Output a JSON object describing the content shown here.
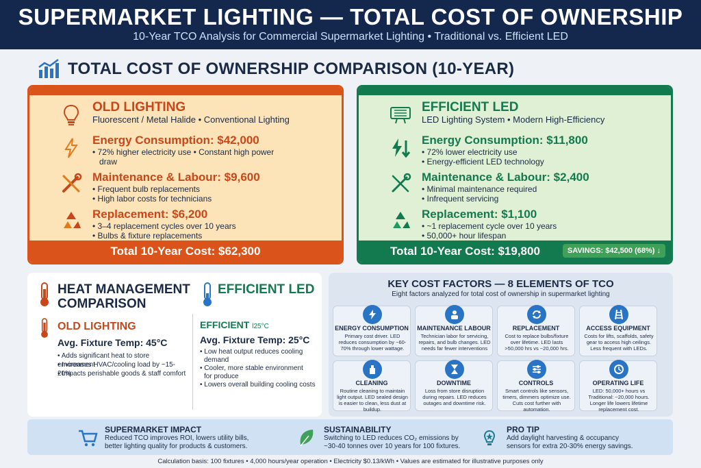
{
  "header": {
    "title": "SUPERMARKET LIGHTING — TOTAL COST OF OWNERSHIP",
    "subtitle": "10-Year TCO Analysis for Commercial Supermarket Lighting • Traditional vs. Efficient LED"
  },
  "section_title": "TOTAL COST OF OWNERSHIP COMPARISON (10-YEAR)",
  "old": {
    "title": "OLD LIGHTING",
    "subtitle": "Fluorescent / Metal Halide • Conventional Lighting",
    "energy": {
      "heading": "Energy Consumption: $42,000",
      "lines": [
        "• 72% higher electricity use • Constant high power",
        "draw"
      ]
    },
    "maintenance": {
      "heading": "Maintenance & Labour: $9,600",
      "lines": [
        "• Frequent bulb replacements",
        "• High labor costs for technicians"
      ]
    },
    "replacement": {
      "heading": "Replacement: $6,200",
      "lines": [
        "• 3–4 replacement cycles over 10 years",
        "• Bulbs & fixture replacements"
      ]
    },
    "total": "Total 10-Year Cost: $62,300"
  },
  "led": {
    "title": "EFFICIENT LED",
    "subtitle": "LED Lighting System • Modern High-Efficiency",
    "energy": {
      "heading": "Energy Consumption: $11,800",
      "lines": [
        "• 72% lower electricity use",
        "• Energy-efficient LED technology"
      ]
    },
    "maintenance": {
      "heading": "Maintenance & Labour: $2,400",
      "lines": [
        "• Minimal maintenance required",
        "• Infrequent servicing"
      ]
    },
    "replacement": {
      "heading": "Replacement: $1,100",
      "lines": [
        "• ~1 replacement cycle over 10 years",
        "• 50,000+ hour lifespan"
      ]
    },
    "total": "Total 10-Year Cost: $19,800",
    "savings": "SAVINGS: $42,500 (68%) ↓"
  },
  "heat": {
    "title": "HEAT MANAGEMENT COMPARISON",
    "led_title": "EFFICIENT LED",
    "old_sub": "OLD LIGHTING",
    "old_temp": "Avg. Fixture Temp: 45°C",
    "old_bullets": [
      "• Adds significant heat to store environment",
      "• Increases HVAC/cooling load by ~15-20%",
      "• Impacts perishable goods & staff comfort"
    ],
    "led_sub": "EFFICIENT ",
    "led_sub_small": "l25°C",
    "led_temp": "Avg. Fixture Temp: 25°C",
    "led_bullets": [
      "• Low heat output reduces cooling",
      "  demand",
      "• Cooler, more stable environment",
      "  for produce",
      "• Lowers overall building cooling costs"
    ]
  },
  "factors": {
    "title": "KEY COST FACTORS — 8 ELEMENTS OF TCO",
    "subtitle": "Eight factors analyzed for total cost of ownership in supermarket lighting",
    "cards": [
      {
        "title": "ENERGY CONSUMPTION",
        "desc": "Primary cost driver. LED reduces consumption by ~60-70% through lower wattage.",
        "icon": "bolt-icon"
      },
      {
        "title": "MAINTENANCE LABOUR",
        "desc": "Technician labor for servicing, repairs, and bulb changes. LED needs far fewer interventions",
        "icon": "technician-icon"
      },
      {
        "title": "REPLACEMENT",
        "desc": "Cost to replace bulbs/fixture over lifetime. LED lasts >50,000 hrs vs ~20,000 hrs.",
        "icon": "cycle-icon"
      },
      {
        "title": "ACCESS EQUIPMENT",
        "desc": "Costs for lifts, scaffolds, safety gear to access high ceilings. Less frequent with LEDs.",
        "icon": "ladder-icon"
      },
      {
        "title": "CLEANING",
        "desc": "Routine cleaning to maintain light output. LED sealed design is easier to clean, less dust at buildup.",
        "icon": "spray-icon"
      },
      {
        "title": "DOWNTIME",
        "desc": "Loss from store disruption during repairs. LED reduces outages and downtime risk.",
        "icon": "hourglass-icon"
      },
      {
        "title": "CONTROLS",
        "desc": "Smart controls like sensors, timers, dimmers optimize use. Cuts cost further with automation.",
        "icon": "sliders-icon"
      },
      {
        "title": "OPERATING LIFE",
        "desc": "LED: 50,000+ hours vs Traditional: ~20,000 hours. Longer life lowers lifetime replacement cost.",
        "icon": "clock-icon"
      }
    ]
  },
  "impact": {
    "supermarket": {
      "title": "SUPERMARKET IMPACT",
      "lines": [
        "Reduced TCO improves ROI, lowers utility bills,",
        "better lighting quality for products & customers."
      ]
    },
    "sustainability": {
      "title": "SUSTAINABILITY",
      "lines": [
        "Switching to LED reduces CO₂ emissions by",
        "~30-40 tonnes over 10 years for 100 fixtures."
      ]
    },
    "protip": {
      "title": "PRO TIP",
      "lines": [
        "Add daylight harvesting & occupancy",
        "sensors for extra 20-30% energy savings."
      ]
    }
  },
  "footer": "Calculation basis: 100 fixtures • 4,000 hours/year operation • Electricity $0.13/kWh • Values are estimated for illustrative purposes only"
}
